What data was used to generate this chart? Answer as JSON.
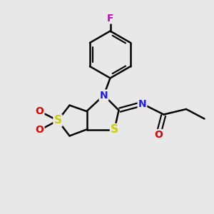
{
  "bg_color": "#e8e8e8",
  "atom_colors": {
    "C": "#000000",
    "N": "#1a1aff",
    "S": "#cccc00",
    "O": "#dd0000",
    "F": "#cc00cc"
  },
  "bond_color": "#000000",
  "bond_width": 1.8,
  "figsize": [
    3.0,
    3.0
  ],
  "dpi": 100,
  "xlim": [
    0,
    10
  ],
  "ylim": [
    0,
    10
  ]
}
